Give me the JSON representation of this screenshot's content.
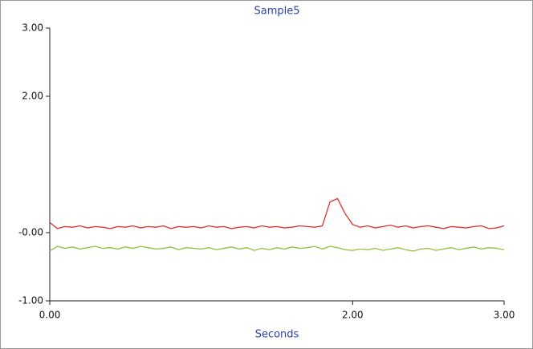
{
  "chart_data": {
    "type": "line",
    "title": "Sample5",
    "x_label": "Seconds",
    "x": [
      0,
      0.05,
      0.1,
      0.15,
      0.2,
      0.25,
      0.3,
      0.35,
      0.4,
      0.45,
      0.5,
      0.55,
      0.6,
      0.65,
      0.7,
      0.75,
      0.8,
      0.85,
      0.9,
      0.95,
      1.0,
      1.05,
      1.1,
      1.15,
      1.2,
      1.25,
      1.3,
      1.35,
      1.4,
      1.45,
      1.5,
      1.55,
      1.6,
      1.65,
      1.7,
      1.75,
      1.8,
      1.85,
      1.9,
      1.95,
      2.0,
      2.05,
      2.1,
      2.15,
      2.2,
      2.25,
      2.3,
      2.35,
      2.4,
      2.45,
      2.5,
      2.55,
      2.6,
      2.65,
      2.7,
      2.75,
      2.8,
      2.85,
      2.9,
      2.95,
      3.0
    ],
    "series": [
      {
        "color": "#e0302c",
        "values": [
          0.15,
          0.06,
          0.09,
          0.08,
          0.1,
          0.07,
          0.09,
          0.08,
          0.06,
          0.09,
          0.08,
          0.1,
          0.07,
          0.09,
          0.08,
          0.1,
          0.06,
          0.09,
          0.08,
          0.09,
          0.07,
          0.1,
          0.08,
          0.09,
          0.06,
          0.08,
          0.09,
          0.07,
          0.1,
          0.08,
          0.09,
          0.07,
          0.08,
          0.1,
          0.09,
          0.08,
          0.1,
          0.45,
          0.5,
          0.28,
          0.12,
          0.08,
          0.1,
          0.07,
          0.09,
          0.11,
          0.08,
          0.1,
          0.07,
          0.09,
          0.1,
          0.08,
          0.06,
          0.09,
          0.08,
          0.07,
          0.09,
          0.1,
          0.06,
          0.07,
          0.1
        ]
      },
      {
        "color": "#8cc43c",
        "values": [
          -0.27,
          -0.2,
          -0.23,
          -0.21,
          -0.24,
          -0.22,
          -0.2,
          -0.23,
          -0.22,
          -0.24,
          -0.21,
          -0.23,
          -0.2,
          -0.22,
          -0.24,
          -0.23,
          -0.21,
          -0.25,
          -0.22,
          -0.23,
          -0.24,
          -0.22,
          -0.25,
          -0.23,
          -0.21,
          -0.24,
          -0.22,
          -0.26,
          -0.23,
          -0.25,
          -0.22,
          -0.24,
          -0.21,
          -0.23,
          -0.22,
          -0.2,
          -0.24,
          -0.2,
          -0.22,
          -0.25,
          -0.26,
          -0.24,
          -0.25,
          -0.23,
          -0.26,
          -0.24,
          -0.22,
          -0.25,
          -0.27,
          -0.24,
          -0.23,
          -0.26,
          -0.24,
          -0.22,
          -0.25,
          -0.23,
          -0.21,
          -0.24,
          -0.22,
          -0.23,
          -0.25
        ]
      }
    ],
    "xlim": [
      0,
      3
    ],
    "xticks": [
      {
        "value": 0,
        "label": "0.00"
      },
      {
        "value": 2,
        "label": "2.00"
      },
      {
        "value": 3,
        "label": "3.00"
      }
    ],
    "ylim": [
      -1,
      3
    ],
    "yticks": [
      {
        "value": 3,
        "label": "3.00"
      },
      {
        "value": 2,
        "label": "2.00"
      },
      {
        "value": 0,
        "label": "-0.00"
      },
      {
        "value": -1,
        "label": "-1.00"
      }
    ],
    "grid": false
  }
}
